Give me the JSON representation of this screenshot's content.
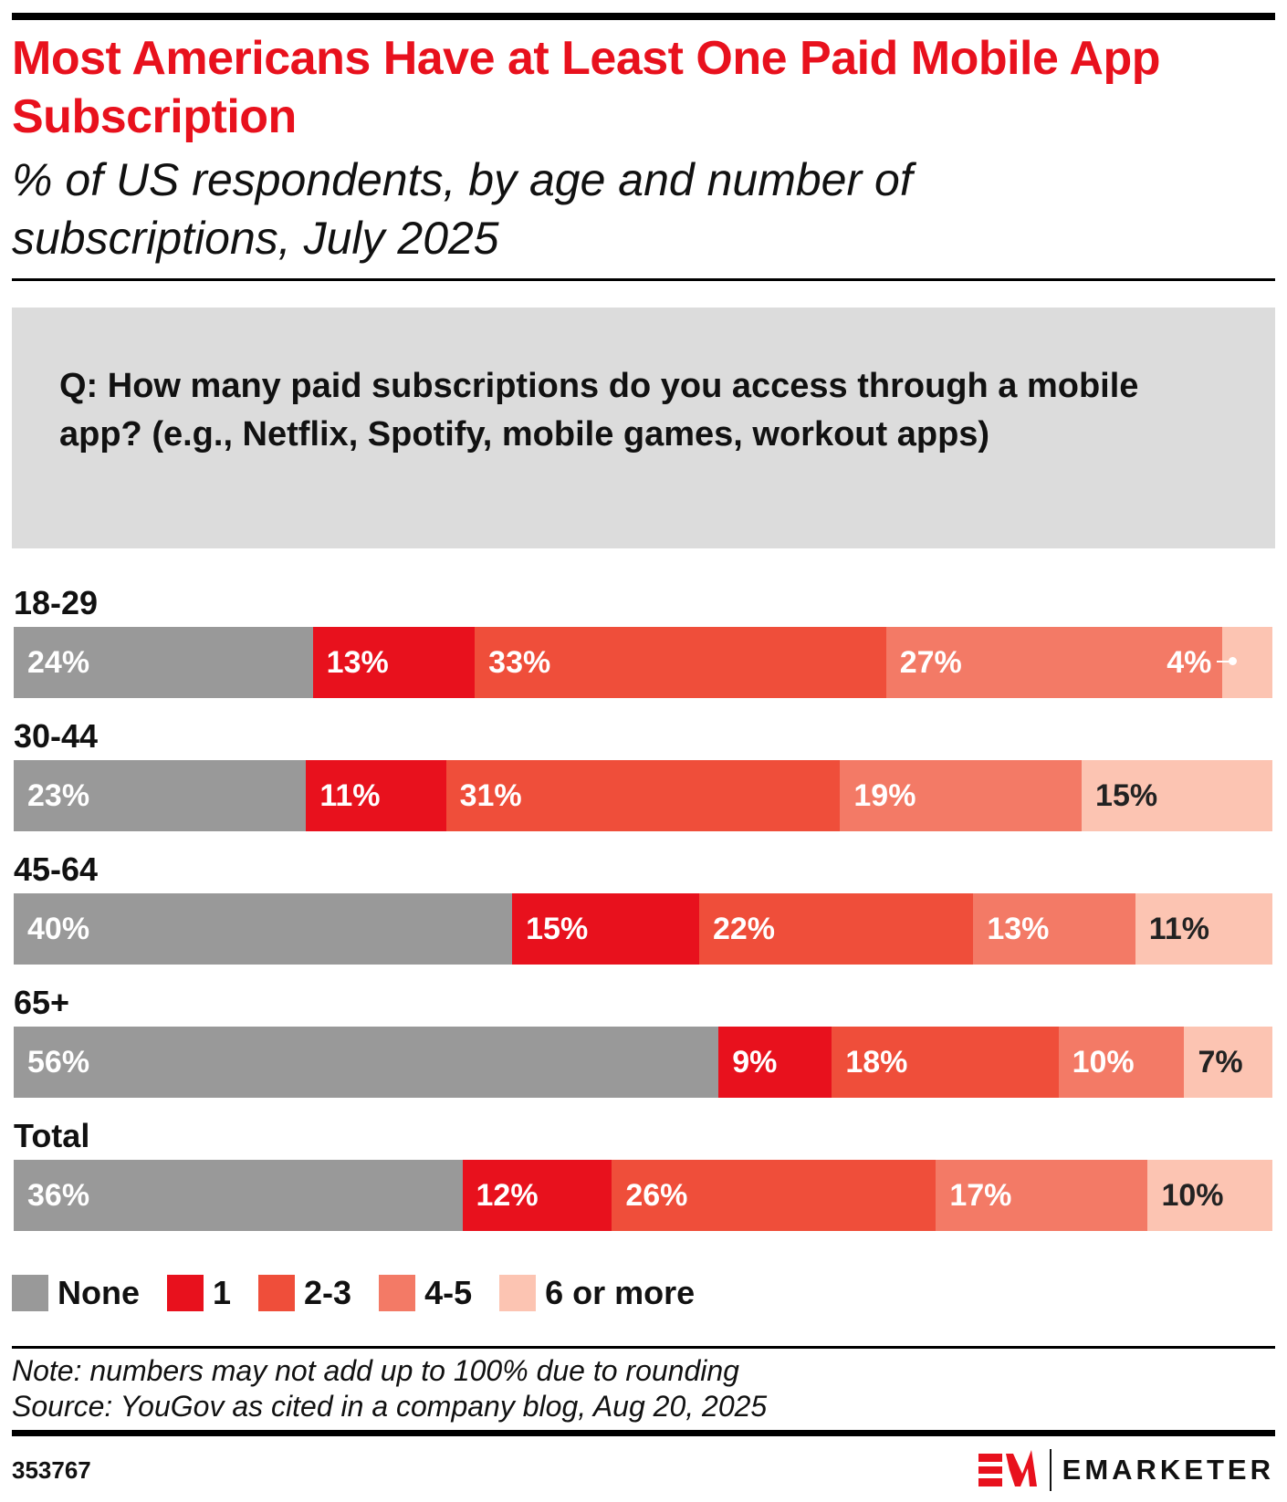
{
  "chart_data": {
    "type": "bar",
    "orientation": "horizontal",
    "stacked": true,
    "title": "Most Americans Have at Least One Paid Mobile App Subscription",
    "subtitle": "% of US respondents, by age and number of subscriptions, July 2025",
    "question": "Q: How many paid subscriptions do you access through a mobile app? (e.g., Netflix, Spotify, mobile games, workout apps)",
    "categories": [
      "18-29",
      "30-44",
      "45-64",
      "65+",
      "Total"
    ],
    "series": [
      {
        "name": "None",
        "color": "#999999",
        "values": [
          24,
          23,
          40,
          56,
          36
        ]
      },
      {
        "name": "1",
        "color": "#e8111d",
        "values": [
          13,
          11,
          15,
          9,
          12
        ]
      },
      {
        "name": "2-3",
        "color": "#ef4e3a",
        "values": [
          33,
          31,
          22,
          18,
          26
        ]
      },
      {
        "name": "4-5",
        "color": "#f37a66",
        "values": [
          27,
          19,
          13,
          10,
          17
        ]
      },
      {
        "name": "6 or more",
        "color": "#fcc4b2",
        "values": [
          4,
          15,
          11,
          7,
          10
        ]
      }
    ],
    "value_suffix": "%",
    "legend_position": "bottom-left",
    "grid": false
  },
  "footer": {
    "note": "Note: numbers may not add up to 100% due to rounding",
    "source": "Source: YouGov as cited in a company blog, Aug 20, 2025",
    "chart_id": "353767",
    "brand": "EMARKETER"
  }
}
